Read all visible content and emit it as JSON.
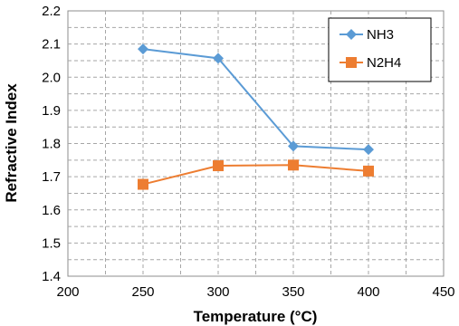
{
  "chart_data": {
    "type": "line",
    "title": "",
    "xlabel": "Temperature (°C)",
    "ylabel": "Refractive Index",
    "xlim": [
      200,
      450
    ],
    "ylim": [
      1.4,
      2.2
    ],
    "x_ticks": [
      "200",
      "250",
      "300",
      "350",
      "400",
      "450"
    ],
    "y_ticks": [
      "1.4",
      "1.5",
      "1.6",
      "1.7",
      "1.8",
      "1.9",
      "2.0",
      "2.1",
      "2.2"
    ],
    "grid": true,
    "legend_position": "top-right",
    "series": [
      {
        "name": "NH3",
        "color": "#5b9bd5",
        "marker": "diamond",
        "x": [
          250,
          300,
          350,
          400
        ],
        "y": [
          2.085,
          2.057,
          1.792,
          1.782
        ]
      },
      {
        "name": "N2H4",
        "color": "#ed7d31",
        "marker": "square",
        "x": [
          250,
          300,
          350,
          400
        ],
        "y": [
          1.677,
          1.733,
          1.735,
          1.717
        ]
      }
    ]
  }
}
